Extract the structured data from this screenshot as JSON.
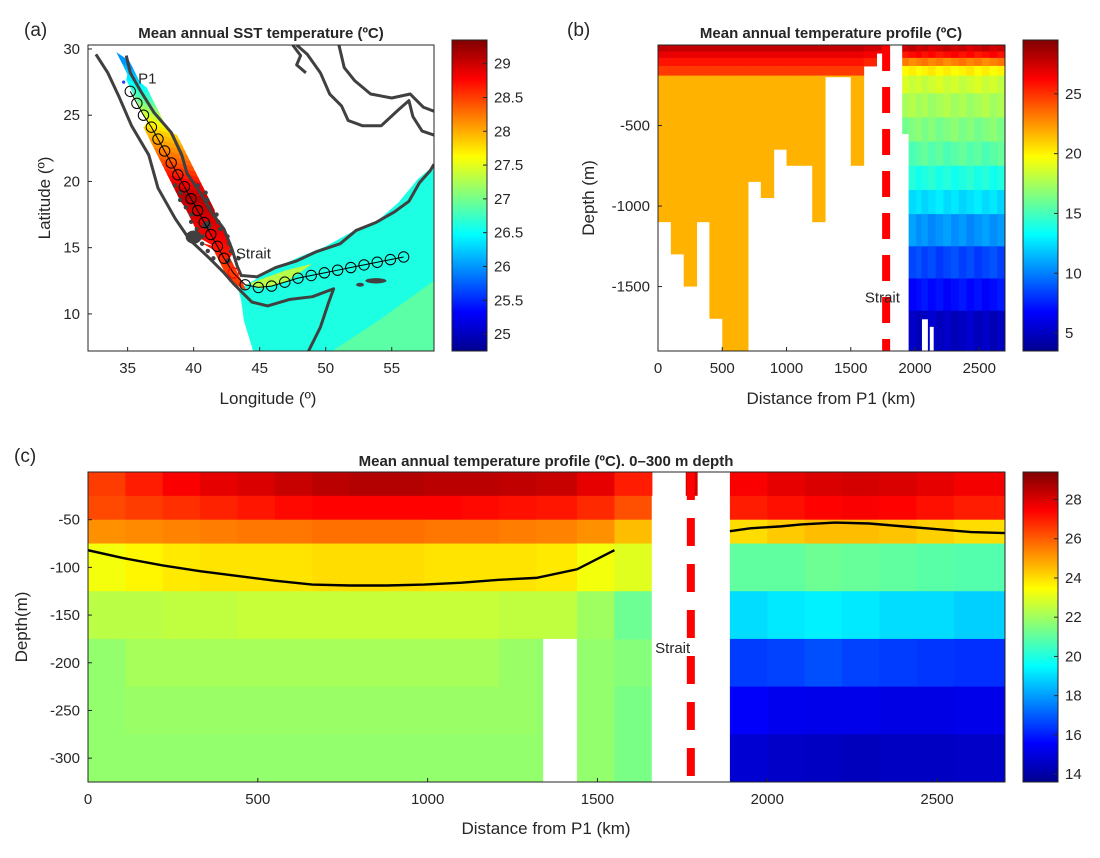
{
  "colormap": [
    "#00008f",
    "#0000ff",
    "#0080ff",
    "#00ffff",
    "#80ff80",
    "#ffff00",
    "#ff8000",
    "#ff0000",
    "#800000"
  ],
  "line_color": "#000000",
  "dash_color": "#ff0000",
  "chart_data": [
    {
      "id": "a",
      "type": "heatmap",
      "panel_label": "(a)",
      "title": "Mean annual SST temperature (ºC)",
      "xlabel": "Longitude (º)",
      "ylabel": "Latitude (º)",
      "xlim": [
        32,
        58.2
      ],
      "ylim": [
        7.2,
        30.3
      ],
      "xticks": [
        35,
        40,
        45,
        50,
        55
      ],
      "yticks": [
        10,
        15,
        20,
        25,
        30
      ],
      "clim": [
        24.75,
        29.35
      ],
      "cticks": [
        25,
        25.5,
        26,
        26.5,
        27,
        27.5,
        28,
        28.5,
        29
      ],
      "ocean_sst": 26.6,
      "red_sea_sst": [
        {
          "lat": 29.0,
          "value": 26.0
        },
        {
          "lat": 26.5,
          "value": 26.8
        },
        {
          "lat": 24.0,
          "value": 27.8
        },
        {
          "lat": 21.5,
          "value": 28.4
        },
        {
          "lat": 19.0,
          "value": 29.1
        },
        {
          "lat": 16.0,
          "value": 28.8
        },
        {
          "lat": 13.5,
          "value": 28.5
        }
      ],
      "transect": {
        "lon": [
          35.2,
          35.7,
          36.2,
          36.8,
          37.3,
          37.8,
          38.3,
          38.8,
          39.3,
          39.8,
          40.3,
          40.8,
          41.3,
          41.8,
          42.3,
          43.0,
          43.9,
          44.9,
          45.9,
          46.9,
          47.9,
          48.9,
          49.9,
          50.9,
          51.9,
          52.9,
          53.9,
          54.9,
          55.9
        ],
        "lat": [
          26.8,
          25.9,
          25.0,
          24.1,
          23.2,
          22.3,
          21.4,
          20.5,
          19.6,
          18.7,
          17.8,
          16.9,
          16.0,
          15.1,
          14.2,
          13.1,
          12.2,
          12.0,
          12.1,
          12.4,
          12.7,
          12.9,
          13.1,
          13.3,
          13.5,
          13.7,
          13.9,
          14.1,
          14.3
        ]
      },
      "annotations": [
        {
          "text": "P1",
          "lon": 35.8,
          "lat": 27.4
        },
        {
          "text": "Strait",
          "lon": 43.2,
          "lat": 14.2
        }
      ]
    },
    {
      "id": "b",
      "type": "heatmap",
      "panel_label": "(b)",
      "title": "Mean annual temperature profile (ºC)",
      "xlabel": "Distance from P1 (km)",
      "ylabel": "Depth (m)",
      "xlim": [
        0,
        2700
      ],
      "ylim": [
        -1900,
        0
      ],
      "xticks": [
        0,
        500,
        1000,
        1500,
        2000,
        2500
      ],
      "yticks": [
        -1500,
        -1000,
        -500
      ],
      "clim": [
        3.5,
        29.5
      ],
      "cticks": [
        5,
        10,
        15,
        20,
        25
      ],
      "surface_layers": [
        {
          "top": 0,
          "bottom": -40,
          "value": 27.8
        },
        {
          "top": -40,
          "bottom": -80,
          "value": 26.8
        },
        {
          "top": -80,
          "bottom": -130,
          "value": 25.8
        },
        {
          "top": -130,
          "bottom": -190,
          "value": 24.8
        }
      ],
      "red_sea_bottom": [
        {
          "x0": 0,
          "x1": 100,
          "depth": -1100
        },
        {
          "x0": 100,
          "x1": 200,
          "depth": -1300
        },
        {
          "x0": 200,
          "x1": 300,
          "depth": -1500
        },
        {
          "x0": 300,
          "x1": 400,
          "depth": -1100
        },
        {
          "x0": 400,
          "x1": 500,
          "depth": -1700
        },
        {
          "x0": 500,
          "x1": 600,
          "depth": -1900
        },
        {
          "x0": 600,
          "x1": 700,
          "depth": -1900
        },
        {
          "x0": 700,
          "x1": 800,
          "depth": -850
        },
        {
          "x0": 800,
          "x1": 900,
          "depth": -950
        },
        {
          "x0": 900,
          "x1": 1000,
          "depth": -650
        },
        {
          "x0": 1000,
          "x1": 1100,
          "depth": -750
        },
        {
          "x0": 1100,
          "x1": 1200,
          "depth": -750
        },
        {
          "x0": 1200,
          "x1": 1300,
          "depth": -1100
        },
        {
          "x0": 1300,
          "x1": 1400,
          "depth": -200
        },
        {
          "x0": 1400,
          "x1": 1500,
          "depth": -200
        },
        {
          "x0": 1500,
          "x1": 1600,
          "depth": -750
        },
        {
          "x0": 1600,
          "x1": 1700,
          "depth": -130
        },
        {
          "x0": 1700,
          "x1": 1800,
          "depth": -50
        }
      ],
      "red_sea_deep_value": 21.7,
      "gulf_start_km": 1900,
      "gulf_layers": [
        {
          "bottom": -40,
          "value": 27.5
        },
        {
          "bottom": -80,
          "value": 26.0
        },
        {
          "bottom": -130,
          "value": 23.0
        },
        {
          "bottom": -190,
          "value": 20.0
        },
        {
          "bottom": -300,
          "value": 18.5
        },
        {
          "bottom": -450,
          "value": 17.5
        },
        {
          "bottom": -600,
          "value": 16.5
        },
        {
          "bottom": -750,
          "value": 15.5
        },
        {
          "bottom": -900,
          "value": 14.0
        },
        {
          "bottom": -1050,
          "value": 12.5
        },
        {
          "bottom": -1250,
          "value": 10.5
        },
        {
          "bottom": -1450,
          "value": 8.5
        },
        {
          "bottom": -1650,
          "value": 7.0
        },
        {
          "bottom": -1900,
          "value": 5.0
        }
      ],
      "gulf_bottom": [
        {
          "x0": 1900,
          "x1": 1950,
          "depth": -550
        },
        {
          "x0": 1950,
          "x1": 2050,
          "depth": -1900
        },
        {
          "x0": 2050,
          "x1": 2100,
          "depth": -1700
        },
        {
          "x0": 2100,
          "x1": 2700,
          "depth": -1900
        }
      ],
      "gulf_gaps": [
        {
          "x0": 2115,
          "x1": 2145,
          "top": -1750
        }
      ],
      "strait_line_km": 1775,
      "annotations": [
        {
          "text": "Strait",
          "x": 1610,
          "y": -1600
        }
      ]
    },
    {
      "id": "c",
      "type": "heatmap",
      "panel_label": "(c)",
      "title": "Mean annual temperature profile (ºC). 0–300 m depth",
      "xlabel": "Distance from P1 (km)",
      "ylabel": "Depth(m)",
      "xlim": [
        0,
        2700
      ],
      "ylim": [
        -325,
        0
      ],
      "xticks": [
        0,
        500,
        1000,
        1500,
        2000,
        2500
      ],
      "yticks": [
        -300,
        -250,
        -200,
        -150,
        -100,
        -50
      ],
      "clim": [
        13.6,
        29.4
      ],
      "cticks": [
        14,
        16,
        18,
        20,
        22,
        24,
        26,
        28
      ],
      "layer_bounds": [
        0,
        -25,
        -50,
        -75,
        -125,
        -175,
        -225,
        -275,
        -325
      ],
      "columns": [
        0,
        110,
        220,
        330,
        440,
        550,
        660,
        770,
        880,
        990,
        1100,
        1210,
        1320,
        1440,
        1550,
        1660
      ],
      "red_sea_rows": [
        [
          26.5,
          27.0,
          27.5,
          27.8,
          28.0,
          28.3,
          28.5,
          28.6,
          28.6,
          28.5,
          28.5,
          28.4,
          28.3,
          27.8,
          27.3
        ],
        [
          26.3,
          26.5,
          26.7,
          26.9,
          27.1,
          27.3,
          27.4,
          27.4,
          27.4,
          27.4,
          27.3,
          27.2,
          27.1,
          26.8,
          26.5
        ],
        [
          25.2,
          25.3,
          25.4,
          25.5,
          25.6,
          25.6,
          25.7,
          25.7,
          25.7,
          25.6,
          25.6,
          25.5,
          25.4,
          25.2,
          25.0
        ],
        [
          23.3,
          23.6,
          23.8,
          23.9,
          23.9,
          23.9,
          24.0,
          24.0,
          24.0,
          23.9,
          23.9,
          23.9,
          23.8,
          23.3,
          23.1
        ],
        [
          22.4,
          22.4,
          22.5,
          22.5,
          22.6,
          22.6,
          22.6,
          22.6,
          22.6,
          22.6,
          22.6,
          22.5,
          22.5,
          22.0,
          21.6
        ],
        [
          21.8,
          22.1,
          22.1,
          22.1,
          22.1,
          22.1,
          22.1,
          22.1,
          22.1,
          22.1,
          22.1,
          21.9,
          21.8,
          21.8,
          21.6
        ],
        [
          21.8,
          21.9,
          21.9,
          21.9,
          21.9,
          21.9,
          21.9,
          21.9,
          21.9,
          21.9,
          21.9,
          21.9,
          21.8,
          21.8,
          21.4
        ],
        [
          21.8,
          21.8,
          21.8,
          21.8,
          21.8,
          21.8,
          21.8,
          21.8,
          21.8,
          21.8,
          21.8,
          21.8,
          21.8,
          21.8,
          21.4
        ]
      ],
      "last_column": {
        "x0": 1550,
        "x1": 1660,
        "values": [
          27.0,
          26.2,
          24.5,
          23.0,
          21.2
        ]
      },
      "blank_cells": [
        {
          "x0": 1340,
          "x1": 1440,
          "top": -175,
          "bottom": -325
        },
        {
          "x0": 1660,
          "x1": 1890,
          "top": -75,
          "bottom": -325
        },
        {
          "x0": 1660,
          "x1": 1760,
          "top": -25,
          "bottom": -75
        },
        {
          "x0": 1760,
          "x1": 1890,
          "top": 0,
          "bottom": -75
        }
      ],
      "strait_column": {
        "x0": 1760,
        "x1": 1795,
        "top": 0,
        "bottom": -25,
        "value": 28.2
      },
      "gulf_start_km": 1890,
      "gulf_columns": [
        1890,
        2000,
        2110,
        2220,
        2330,
        2440,
        2550,
        2700
      ],
      "gulf_rows": [
        [
          27.5,
          27.8,
          28.0,
          28.1,
          28.0,
          27.8,
          27.6
        ],
        [
          27.0,
          27.2,
          27.4,
          27.5,
          27.4,
          27.2,
          27.0
        ],
        [
          24.0,
          24.3,
          24.5,
          24.5,
          24.4,
          24.2,
          24.0
        ],
        [
          21.0,
          21.0,
          21.2,
          21.1,
          21.0,
          20.9,
          20.8
        ],
        [
          19.0,
          19.2,
          19.3,
          19.2,
          19.0,
          19.0,
          18.8
        ],
        [
          16.5,
          16.6,
          16.8,
          16.6,
          16.5,
          16.4,
          16.3
        ],
        [
          15.5,
          15.3,
          15.2,
          15.2,
          15.1,
          15.1,
          15.2
        ],
        [
          14.8,
          14.6,
          14.5,
          14.4,
          14.5,
          14.5,
          14.6
        ]
      ],
      "red_sea_isotherm": {
        "x": [
          0,
          100,
          220,
          330,
          440,
          550,
          660,
          770,
          880,
          990,
          1100,
          1210,
          1320,
          1440,
          1550
        ],
        "y": [
          -82,
          -90,
          -98,
          -104,
          -109,
          -114,
          -118,
          -119,
          -119,
          -118,
          -116,
          -113,
          -111,
          -102,
          -82
        ]
      },
      "gulf_isotherm": {
        "x": [
          1890,
          1950,
          2040,
          2100,
          2200,
          2300,
          2400,
          2500,
          2600,
          2700
        ],
        "y": [
          -62,
          -59,
          -57,
          -55,
          -53,
          -54,
          -57,
          -60,
          -63,
          -64
        ]
      },
      "strait_line_km": 1775,
      "annotations": [
        {
          "text": "Strait",
          "x": 1670,
          "y": -190
        }
      ]
    }
  ]
}
